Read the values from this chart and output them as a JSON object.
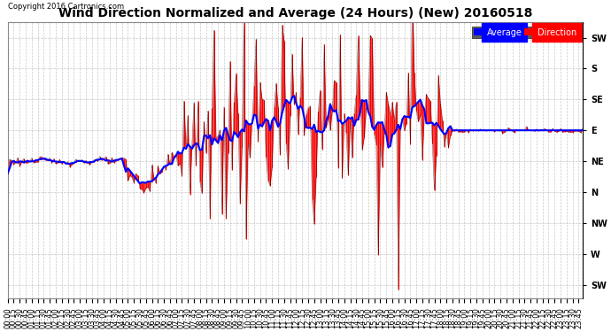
{
  "title": "Wind Direction Normalized and Average (24 Hours) (New) 20160518",
  "copyright": "Copyright 2016 Cartronics.com",
  "background_color": "#ffffff",
  "plot_bg_color": "#ffffff",
  "grid_color": "#bbbbbb",
  "ytick_labels": [
    "SW",
    "S",
    "SE",
    "E",
    "NE",
    "N",
    "NW",
    "W",
    "SW"
  ],
  "ytick_values": [
    225,
    180,
    135,
    90,
    45,
    0,
    -45,
    -90,
    -135
  ],
  "ylim": [
    -155,
    248
  ],
  "legend_labels": [
    "Average",
    "Direction"
  ],
  "average_color": "#0000ff",
  "direction_color": "#ff0000",
  "bar_outline_color": "#000000",
  "title_fontsize": 10,
  "tick_fontsize": 7,
  "n_points": 288,
  "interval_minutes": 5
}
